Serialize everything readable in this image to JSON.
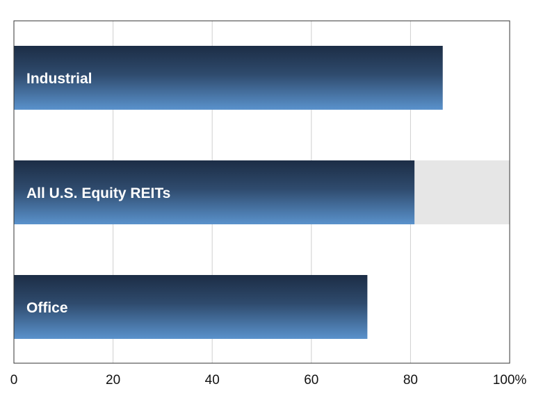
{
  "chart_data": {
    "type": "bar",
    "orientation": "horizontal",
    "categories": [
      "Industrial",
      "All U.S. Equity REITs",
      "Office"
    ],
    "values": [
      86.5,
      80.8,
      71.3
    ],
    "highlight_category": "All U.S. Equity REITs",
    "xlim": [
      0,
      100
    ],
    "xticks": [
      0,
      20,
      40,
      60,
      80,
      100
    ],
    "xtick_labels": [
      "0",
      "20",
      "40",
      "60",
      "80",
      "100%"
    ],
    "grid": "vertical",
    "colors": {
      "bar_top": "#1c2d45",
      "bar_bottom": "#5a92cc",
      "highlight_band": "#e6e6e6",
      "gridline": "#cfcfcf",
      "axis": "#333333"
    }
  }
}
